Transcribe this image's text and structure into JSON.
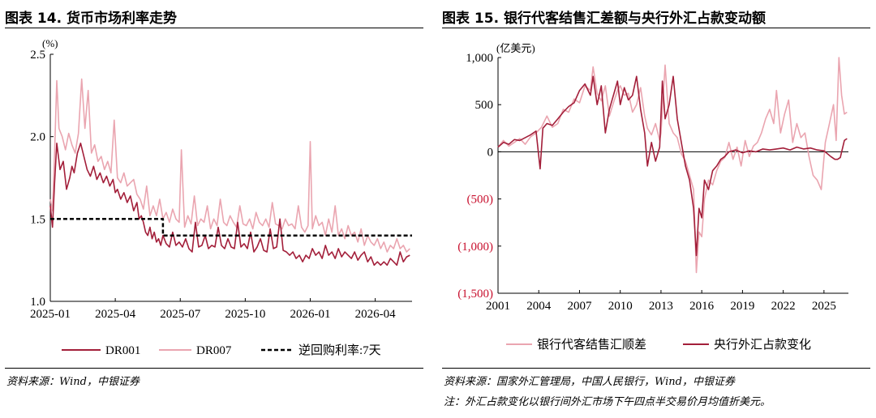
{
  "left_panel": {
    "title": "图表 14. 货币市场利率走势",
    "source": "资料来源：Wind，中银证券"
  },
  "right_panel": {
    "title": "图表 15. 银行代客结售汇差额与央行外汇占款变动额",
    "source": "资料来源：国家外汇管理局，中国人民银行，Wind，中银证券",
    "note": "注：外汇占款变化以银行间外汇市场下午四点半交易价月均值折美元。"
  },
  "chart_data": [
    {
      "type": "line",
      "title": "",
      "ylabel": "(%)",
      "ylim": [
        1.0,
        2.5
      ],
      "yticks": [
        1.0,
        1.5,
        2.0,
        2.5
      ],
      "ytick_labels": [
        "1.0",
        "1.5",
        "2.0",
        "2.5"
      ],
      "xlim": [
        0,
        16.7
      ],
      "xticks": [
        0,
        3,
        6,
        9,
        12,
        15
      ],
      "xtick_labels": [
        "2025-01",
        "2025-04",
        "2025-07",
        "2025-10",
        "2026-01",
        "2026-04"
      ],
      "grid": false,
      "legend": "bottom",
      "colors": {
        "DR001": "#a31f3a",
        "DR007": "#eaa5b0",
        "policy": "#000000"
      },
      "series": [
        {
          "name": "DR001",
          "style": "solid",
          "x": [
            0,
            0.1,
            0.2,
            0.3,
            0.45,
            0.6,
            0.75,
            0.9,
            1.0,
            1.1,
            1.25,
            1.4,
            1.55,
            1.7,
            1.85,
            2.0,
            2.15,
            2.3,
            2.45,
            2.6,
            2.75,
            2.9,
            3.0,
            3.1,
            3.25,
            3.4,
            3.55,
            3.7,
            3.85,
            4.0,
            4.1,
            4.2,
            4.3,
            4.4,
            4.5,
            4.6,
            4.7,
            4.8,
            4.9,
            5.0,
            5.1,
            5.2,
            5.35,
            5.5,
            5.65,
            5.8,
            5.95,
            6.1,
            6.25,
            6.4,
            6.55,
            6.7,
            6.85,
            7.0,
            7.15,
            7.3,
            7.45,
            7.6,
            7.75,
            7.9,
            8.05,
            8.2,
            8.35,
            8.5,
            8.65,
            8.8,
            8.95,
            9.1,
            9.25,
            9.4,
            9.55,
            9.7,
            9.85,
            10.0,
            10.15,
            10.3,
            10.45,
            10.6,
            10.75,
            10.9,
            11.05,
            11.2,
            11.35,
            11.5,
            11.65,
            11.8,
            11.95,
            12.1,
            12.25,
            12.4,
            12.55,
            12.7,
            12.85,
            13.0,
            13.15,
            13.3,
            13.45,
            13.6,
            13.75,
            13.9,
            14.05,
            14.2,
            14.35,
            14.5,
            14.65,
            14.8,
            14.95,
            15.1,
            15.25,
            15.4,
            15.55,
            15.7,
            15.85,
            16.0,
            16.15,
            16.3,
            16.45,
            16.6
          ],
          "y": [
            1.58,
            1.45,
            1.72,
            1.96,
            1.8,
            1.85,
            1.68,
            1.75,
            1.82,
            1.78,
            1.9,
            1.96,
            1.88,
            1.8,
            1.76,
            1.82,
            1.74,
            1.78,
            1.72,
            1.76,
            1.7,
            1.74,
            1.66,
            1.68,
            1.62,
            1.66,
            1.6,
            1.64,
            1.55,
            1.6,
            1.5,
            1.52,
            1.48,
            1.42,
            1.4,
            1.45,
            1.38,
            1.42,
            1.36,
            1.38,
            1.34,
            1.4,
            1.35,
            1.33,
            1.42,
            1.34,
            1.36,
            1.33,
            1.38,
            1.32,
            1.3,
            1.48,
            1.33,
            1.34,
            1.4,
            1.32,
            1.34,
            1.33,
            1.45,
            1.34,
            1.32,
            1.38,
            1.33,
            1.32,
            1.48,
            1.33,
            1.35,
            1.32,
            1.42,
            1.3,
            1.33,
            1.38,
            1.31,
            1.3,
            1.44,
            1.32,
            1.33,
            1.5,
            1.31,
            1.3,
            1.28,
            1.3,
            1.26,
            1.28,
            1.24,
            1.28,
            1.26,
            1.32,
            1.28,
            1.3,
            1.26,
            1.34,
            1.28,
            1.3,
            1.26,
            1.32,
            1.27,
            1.3,
            1.28,
            1.26,
            1.3,
            1.25,
            1.28,
            1.3,
            1.24,
            1.27,
            1.22,
            1.24,
            1.22,
            1.24,
            1.22,
            1.26,
            1.24,
            1.22,
            1.3,
            1.24,
            1.27,
            1.28
          ]
        },
        {
          "name": "DR007",
          "style": "solid",
          "x": [
            0,
            0.1,
            0.2,
            0.3,
            0.4,
            0.55,
            0.7,
            0.85,
            1.0,
            1.15,
            1.3,
            1.45,
            1.6,
            1.75,
            1.9,
            2.05,
            2.2,
            2.35,
            2.5,
            2.65,
            2.8,
            2.95,
            3.1,
            3.25,
            3.4,
            3.55,
            3.7,
            3.85,
            4.0,
            4.15,
            4.3,
            4.45,
            4.6,
            4.75,
            4.9,
            5.05,
            5.2,
            5.35,
            5.5,
            5.65,
            5.8,
            5.95,
            6.05,
            6.2,
            6.35,
            6.5,
            6.65,
            6.8,
            6.95,
            7.1,
            7.25,
            7.4,
            7.55,
            7.7,
            7.85,
            8.0,
            8.15,
            8.3,
            8.45,
            8.6,
            8.75,
            8.9,
            9.05,
            9.2,
            9.35,
            9.5,
            9.65,
            9.8,
            9.95,
            10.1,
            10.25,
            10.4,
            10.55,
            10.7,
            10.85,
            11.0,
            11.15,
            11.3,
            11.45,
            11.6,
            11.75,
            11.9,
            12.0,
            12.1,
            12.25,
            12.4,
            12.55,
            12.7,
            12.85,
            13.0,
            13.15,
            13.3,
            13.45,
            13.6,
            13.75,
            13.9,
            14.05,
            14.2,
            14.35,
            14.5,
            14.65,
            14.8,
            14.95,
            15.1,
            15.25,
            15.4,
            15.55,
            15.7,
            15.85,
            16.0,
            16.15,
            16.3,
            16.45,
            16.6
          ],
          "y": [
            1.62,
            1.55,
            1.9,
            2.34,
            2.05,
            2.0,
            1.92,
            2.02,
            1.95,
            1.9,
            2.02,
            2.35,
            2.05,
            2.28,
            1.9,
            1.95,
            1.85,
            1.88,
            1.8,
            1.85,
            1.78,
            2.1,
            1.75,
            1.72,
            1.78,
            1.7,
            1.72,
            1.74,
            1.65,
            1.62,
            1.56,
            1.7,
            1.52,
            1.58,
            1.52,
            1.62,
            1.5,
            1.54,
            1.48,
            1.56,
            1.5,
            1.48,
            1.92,
            1.45,
            1.52,
            1.47,
            1.64,
            1.46,
            1.5,
            1.48,
            1.58,
            1.44,
            1.5,
            1.46,
            1.62,
            1.48,
            1.46,
            1.52,
            1.48,
            1.45,
            1.58,
            1.47,
            1.46,
            1.5,
            1.44,
            1.54,
            1.48,
            1.46,
            1.5,
            1.45,
            1.6,
            1.47,
            1.46,
            1.44,
            1.5,
            1.46,
            1.47,
            1.44,
            1.58,
            1.45,
            1.42,
            1.46,
            1.97,
            1.44,
            1.52,
            1.46,
            1.48,
            1.4,
            1.5,
            1.42,
            1.58,
            1.4,
            1.44,
            1.38,
            1.46,
            1.4,
            1.42,
            1.36,
            1.44,
            1.34,
            1.4,
            1.36,
            1.34,
            1.38,
            1.32,
            1.36,
            1.3,
            1.34,
            1.32,
            1.38,
            1.32,
            1.34,
            1.3,
            1.32
          ]
        },
        {
          "name": "逆回购利率:7天",
          "style": "dashed",
          "x": [
            0,
            5.2,
            5.2,
            16.7
          ],
          "y": [
            1.5,
            1.5,
            1.4,
            1.4
          ]
        }
      ]
    },
    {
      "type": "line",
      "title": "",
      "ylabel": "(亿美元)",
      "ylim": [
        -1500,
        1000
      ],
      "yticks": [
        -1500,
        -1000,
        -500,
        0,
        500,
        1000
      ],
      "ytick_labels": [
        "(1,500)",
        "(1,000)",
        "(500)",
        "0",
        "500",
        "1,000"
      ],
      "xlim": [
        2001,
        2026.8
      ],
      "xticks": [
        2001,
        2004,
        2007,
        2010,
        2013,
        2016,
        2019,
        2022,
        2025
      ],
      "xtick_labels": [
        "2001",
        "2004",
        "2007",
        "2010",
        "2013",
        "2016",
        "2019",
        "2022",
        "2025"
      ],
      "grid": false,
      "legend": "bottom",
      "colors": {
        "fx_settlement": "#eaa5b0",
        "pboc_fx": "#a31f3a",
        "negative_ticks": "#c8102e"
      },
      "series": [
        {
          "name": "银行代客结售汇顺差",
          "style": "solid",
          "x": [
            2001.0,
            2001.4,
            2001.8,
            2002.2,
            2002.6,
            2003.0,
            2003.4,
            2003.8,
            2004.2,
            2004.6,
            2005.0,
            2005.4,
            2005.8,
            2006.2,
            2006.6,
            2007.0,
            2007.4,
            2007.8,
            2008.0,
            2008.3,
            2008.6,
            2008.9,
            2009.2,
            2009.5,
            2009.8,
            2010.0,
            2010.3,
            2010.6,
            2010.9,
            2011.2,
            2011.5,
            2011.8,
            2012.0,
            2012.3,
            2012.6,
            2012.9,
            2013.0,
            2013.3,
            2013.6,
            2013.9,
            2014.2,
            2014.5,
            2014.8,
            2015.1,
            2015.4,
            2015.6,
            2015.8,
            2016.0,
            2016.2,
            2016.5,
            2016.8,
            2017.1,
            2017.4,
            2017.7,
            2018.0,
            2018.3,
            2018.6,
            2018.9,
            2019.2,
            2019.5,
            2019.8,
            2020.1,
            2020.4,
            2020.7,
            2021.0,
            2021.3,
            2021.5,
            2021.8,
            2022.1,
            2022.4,
            2022.7,
            2023.0,
            2023.3,
            2023.6,
            2023.9,
            2024.2,
            2024.5,
            2024.8,
            2025.1,
            2025.4,
            2025.7,
            2025.9,
            2026.1,
            2026.3,
            2026.5,
            2026.7
          ],
          "y": [
            50,
            120,
            60,
            100,
            140,
            80,
            160,
            200,
            260,
            380,
            260,
            300,
            450,
            420,
            560,
            520,
            700,
            650,
            900,
            620,
            540,
            700,
            380,
            520,
            650,
            700,
            600,
            620,
            420,
            500,
            680,
            380,
            250,
            180,
            300,
            120,
            200,
            920,
            300,
            200,
            150,
            -20,
            -100,
            -250,
            -400,
            -1280,
            -850,
            -900,
            -500,
            -300,
            -350,
            -200,
            -100,
            -60,
            100,
            -80,
            50,
            -150,
            120,
            -50,
            60,
            100,
            200,
            350,
            450,
            300,
            650,
            200,
            400,
            550,
            100,
            300,
            150,
            200,
            -50,
            -250,
            -300,
            -400,
            100,
            300,
            500,
            120,
            1000,
            600,
            400,
            420
          ]
        },
        {
          "name": "央行外汇占款变化",
          "style": "solid",
          "x": [
            2001.0,
            2001.4,
            2001.8,
            2002.2,
            2002.6,
            2003.0,
            2003.4,
            2003.8,
            2004.1,
            2004.3,
            2004.6,
            2005.0,
            2005.4,
            2005.8,
            2006.2,
            2006.6,
            2007.0,
            2007.4,
            2007.8,
            2008.0,
            2008.3,
            2008.6,
            2008.9,
            2009.2,
            2009.5,
            2009.8,
            2010.0,
            2010.3,
            2010.6,
            2010.9,
            2011.2,
            2011.5,
            2011.8,
            2012.0,
            2012.3,
            2012.6,
            2012.9,
            2013.1,
            2013.3,
            2013.6,
            2013.9,
            2014.2,
            2014.5,
            2014.8,
            2015.1,
            2015.4,
            2015.6,
            2015.8,
            2016.0,
            2016.2,
            2016.5,
            2016.8,
            2017.1,
            2017.4,
            2017.7,
            2018.0,
            2018.5,
            2019.0,
            2019.5,
            2020.0,
            2020.5,
            2021.0,
            2021.5,
            2022.0,
            2022.5,
            2023.0,
            2023.5,
            2024.0,
            2024.5,
            2025.0,
            2025.5,
            2025.8,
            2026.0,
            2026.2,
            2026.5,
            2026.7
          ],
          "y": [
            50,
            100,
            80,
            130,
            120,
            150,
            180,
            220,
            -180,
            250,
            300,
            280,
            350,
            420,
            480,
            520,
            650,
            720,
            600,
            800,
            500,
            700,
            200,
            450,
            600,
            750,
            500,
            680,
            550,
            600,
            800,
            450,
            200,
            -150,
            100,
            -100,
            50,
            750,
            350,
            500,
            800,
            350,
            100,
            -150,
            -300,
            -600,
            -1100,
            -600,
            -700,
            -300,
            -400,
            -200,
            -150,
            -80,
            -50,
            0,
            20,
            -10,
            10,
            0,
            30,
            20,
            30,
            40,
            20,
            50,
            30,
            40,
            20,
            10,
            -50,
            -80,
            -80,
            -60,
            120,
            140
          ]
        }
      ]
    }
  ]
}
